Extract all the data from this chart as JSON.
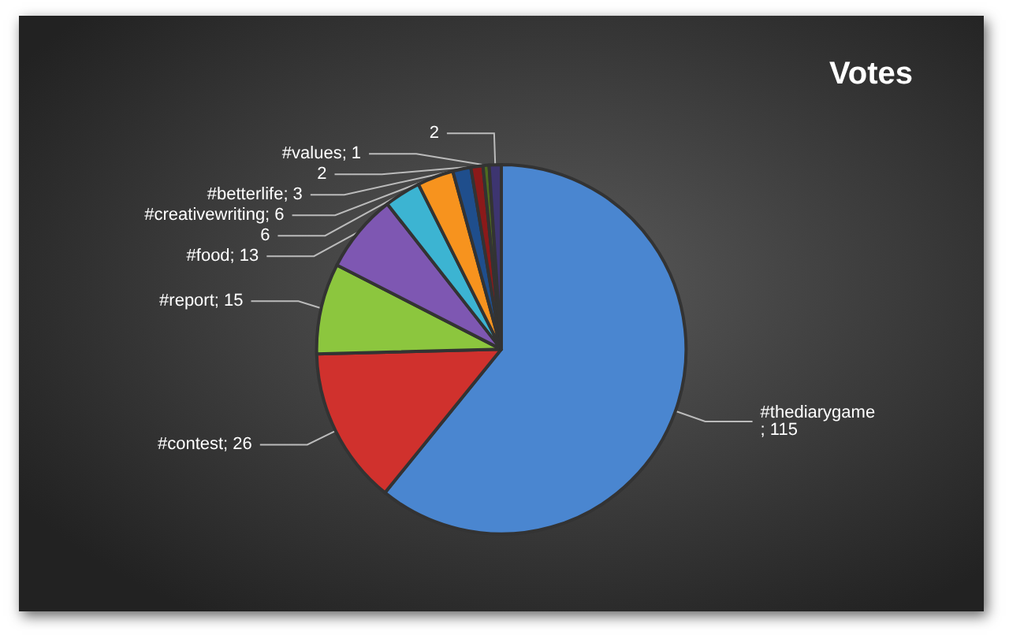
{
  "chart_data": {
    "type": "pie",
    "title": "Votes",
    "categories": [
      "#thediarygame",
      "#contest",
      "#report",
      "#food",
      null,
      "#creativewriting",
      "#betterlife",
      null,
      "#values",
      null
    ],
    "values": [
      115,
      26,
      15,
      13,
      6,
      6,
      3,
      2,
      1,
      2
    ],
    "value_labels": [
      "; 115",
      "; 26",
      "; 15",
      "; 13",
      "6",
      "; 6",
      "; 3",
      "2",
      "; 1",
      "2"
    ],
    "colors": [
      "#4a86d0",
      "#d0312d",
      "#8cc63e",
      "#7e57b2",
      "#3cb4d2",
      "#f7931e",
      "#1f4e8c",
      "#8b1a1a",
      "#4f6b1f",
      "#3d3570"
    ],
    "legend": false
  }
}
